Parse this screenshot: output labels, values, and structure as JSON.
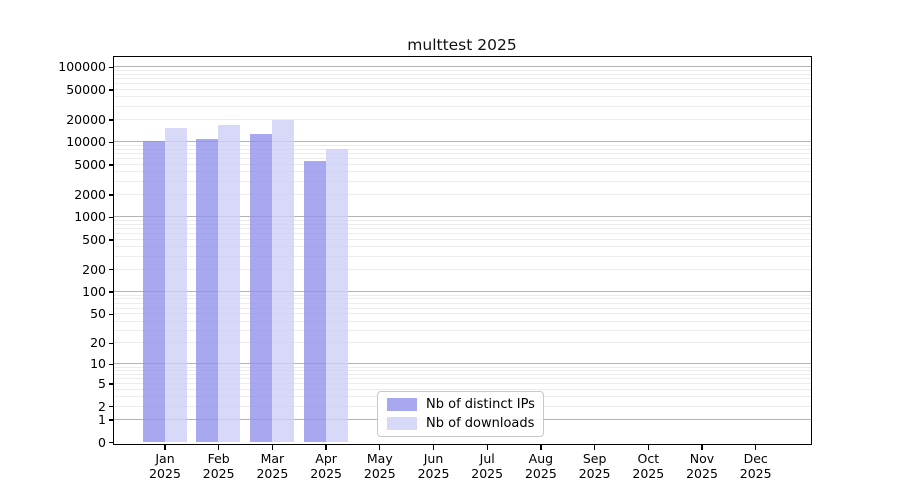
{
  "chart_data": {
    "type": "bar",
    "title": "multtest 2025",
    "categories": [
      "Jan",
      "Feb",
      "Mar",
      "Apr",
      "May",
      "Jun",
      "Jul",
      "Aug",
      "Sep",
      "Oct",
      "Nov",
      "Dec"
    ],
    "category_year": "2025",
    "series": [
      {
        "name": "Nb of distinct IPs",
        "color": "#9292ec",
        "alpha": 0.8,
        "values": [
          10400,
          11000,
          12800,
          5600,
          null,
          null,
          null,
          null,
          null,
          null,
          null,
          null
        ]
      },
      {
        "name": "Nb of downloads",
        "color": "#cecef6",
        "alpha": 0.8,
        "values": [
          15400,
          16800,
          19800,
          8100,
          null,
          null,
          null,
          null,
          null,
          null,
          null,
          null
        ]
      }
    ],
    "yscale": "log10(1+x)",
    "yticks": [
      100000,
      50000,
      20000,
      10000,
      5000,
      2000,
      1000,
      500,
      200,
      100,
      50,
      20,
      10,
      5,
      2,
      1,
      0
    ],
    "ylim": [
      0,
      140000
    ],
    "xlabel": "",
    "ylabel": "",
    "grid": {
      "decade_line_color": "#b3b3b3",
      "minor_line_color": "#ececec"
    },
    "legend_position": "lower center inside plot",
    "axis_color": "#000000",
    "background_color": "#ffffff"
  }
}
